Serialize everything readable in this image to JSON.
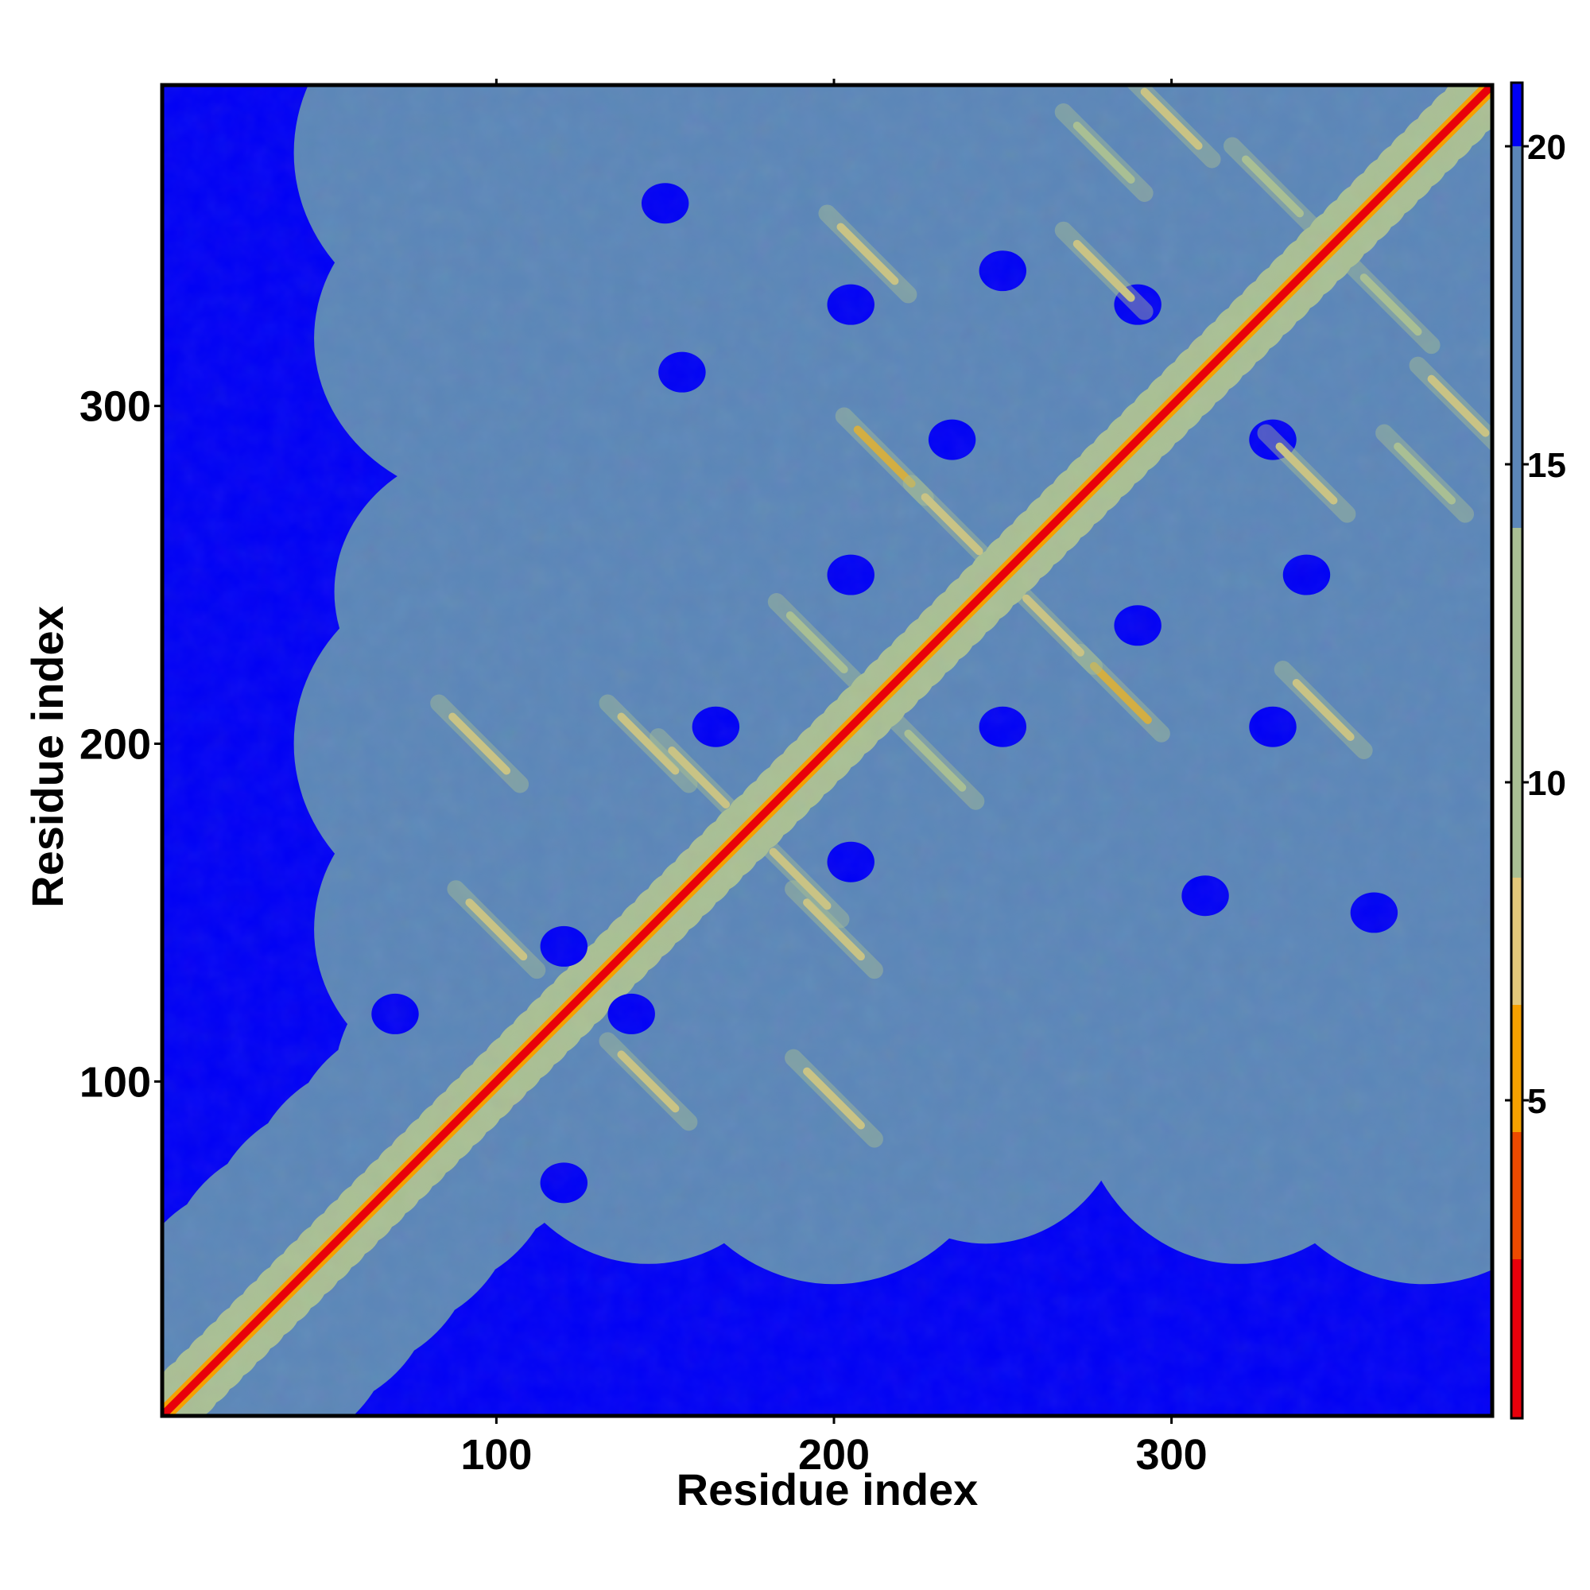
{
  "chart_data": {
    "type": "heatmap",
    "title": "",
    "xlabel": "Residue index",
    "ylabel": "Residue index",
    "xlim": [
      1,
      395
    ],
    "ylim": [
      1,
      395
    ],
    "x_ticks": [
      100,
      200,
      300
    ],
    "y_ticks": [
      100,
      200,
      300
    ],
    "value_description": "pairwise residue distance (symmetric contact map)",
    "colorbar": {
      "ticks": [
        5,
        10,
        15,
        20
      ],
      "range": [
        0,
        21
      ],
      "bands": [
        {
          "max": 2.5,
          "color": "#e8000b"
        },
        {
          "max": 4.5,
          "color": "#ee4a00"
        },
        {
          "max": 6.5,
          "color": "#f6a000"
        },
        {
          "max": 8.5,
          "color": "#e4c87a"
        },
        {
          "max": 14.0,
          "color": "#a9bf94"
        },
        {
          "max": 20.0,
          "color": "#5b86b8"
        },
        {
          "max": 21.0,
          "color": "#0000f5"
        }
      ]
    },
    "diagonal": {
      "value": 0.5,
      "color": "#e8000b"
    },
    "structure": {
      "folded_region": [
        [
          30,
          395
        ],
        [
          30,
          395
        ]
      ],
      "helix_bundles": [
        [
          80,
          120
        ],
        [
          130,
          160
        ],
        [
          185,
          215
        ],
        [
          230,
          260
        ],
        [
          300,
          340
        ],
        [
          355,
          395
        ]
      ],
      "long_range_contacts": [
        {
          "i": 95,
          "j": 200,
          "value": 7
        },
        {
          "i": 145,
          "j": 200,
          "value": 8
        },
        {
          "i": 215,
          "j": 285,
          "value": 6
        },
        {
          "i": 235,
          "j": 265,
          "value": 7
        },
        {
          "i": 280,
          "j": 340,
          "value": 7
        },
        {
          "i": 300,
          "j": 385,
          "value": 8
        },
        {
          "i": 210,
          "j": 345,
          "value": 8
        },
        {
          "i": 280,
          "j": 375,
          "value": 9
        },
        {
          "i": 330,
          "j": 365,
          "value": 9
        },
        {
          "i": 100,
          "j": 145,
          "value": 7
        },
        {
          "i": 160,
          "j": 190,
          "value": 8
        },
        {
          "i": 195,
          "j": 230,
          "value": 9
        }
      ]
    },
    "grid": false,
    "legend": "colorbar-right"
  }
}
